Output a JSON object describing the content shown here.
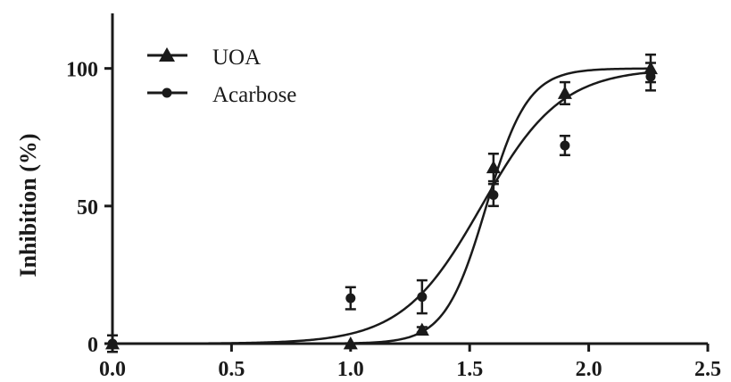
{
  "chart_data": {
    "type": "scatter",
    "title": "",
    "xlabel": "",
    "ylabel": "Inhibition (%)",
    "xlim": [
      0.0,
      2.5
    ],
    "ylim": [
      0,
      120
    ],
    "x_ticks": [
      "0.0",
      "0.5",
      "1.0",
      "1.5",
      "2.0",
      "2.5"
    ],
    "y_ticks": [
      "0",
      "50",
      "100"
    ],
    "grid": false,
    "legend_position": "top-left",
    "series": [
      {
        "name": "UOA",
        "marker": "triangle",
        "x": [
          0.0,
          1.0,
          1.3,
          1.6,
          1.9,
          2.26
        ],
        "y": [
          0,
          0,
          5,
          64,
          91,
          100
        ],
        "error": [
          3,
          0,
          1,
          5,
          4,
          5
        ],
        "fit": {
          "bottom": 0,
          "top": 100,
          "logEC50": 1.57,
          "hillslope": 5.0
        }
      },
      {
        "name": "Acarbose",
        "marker": "circle",
        "x": [
          0.0,
          1.0,
          1.3,
          1.6,
          1.9,
          2.26
        ],
        "y": [
          0,
          16.5,
          17,
          54,
          72,
          97
        ],
        "error": [
          3,
          4,
          6,
          4,
          3.5,
          5
        ],
        "fit": {
          "bottom": 0,
          "top": 100,
          "logEC50": 1.55,
          "hillslope": 2.6
        }
      }
    ]
  }
}
